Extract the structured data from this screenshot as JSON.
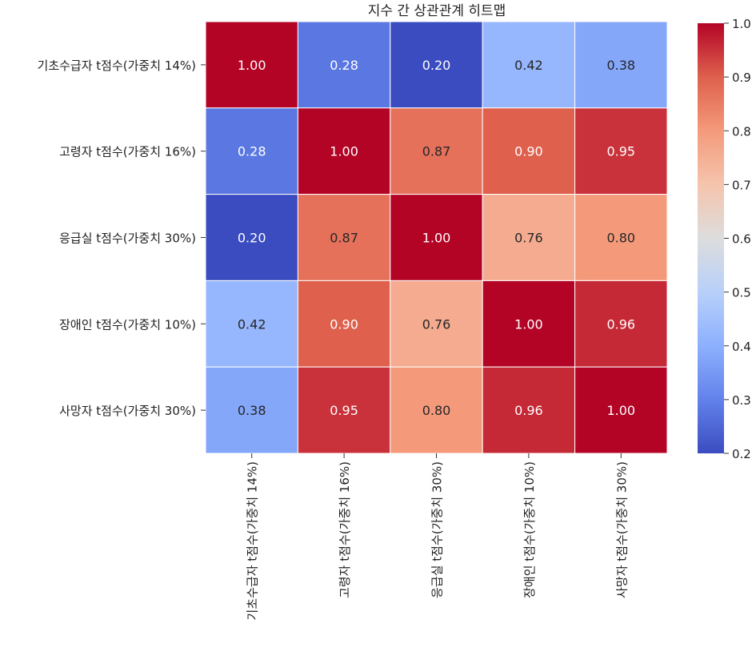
{
  "chart_data": {
    "type": "heatmap",
    "title": "지수 간 상관관계 히트맵",
    "xlabel": "",
    "ylabel": "",
    "x_labels": [
      "기초수급자 t점수(가중치 14%)",
      "고령자 t점수(가중치 16%)",
      "응급실 t점수(가중치 30%)",
      "장애인 t점수(가중치 10%)",
      "사망자 t점수(가중치 30%)"
    ],
    "y_labels": [
      "기초수급자 t점수(가중치 14%)",
      "고령자 t점수(가중치 16%)",
      "응급실 t점수(가중치 30%)",
      "장애인 t점수(가중치 10%)",
      "사망자 t점수(가중치 30%)"
    ],
    "values": [
      [
        1.0,
        0.28,
        0.2,
        0.42,
        0.38
      ],
      [
        0.28,
        1.0,
        0.87,
        0.9,
        0.95
      ],
      [
        0.2,
        0.87,
        1.0,
        0.76,
        0.8
      ],
      [
        0.42,
        0.9,
        0.76,
        1.0,
        0.96
      ],
      [
        0.38,
        0.95,
        0.8,
        0.96,
        1.0
      ]
    ],
    "value_format": "0.00",
    "colormap": "coolwarm",
    "vmin": 0.2,
    "vmax": 1.0,
    "colorbar_ticks": [
      0.2,
      0.3,
      0.4,
      0.5,
      0.6,
      0.7,
      0.8,
      0.9,
      1.0
    ],
    "colorbar_tick_labels": [
      "0.2",
      "0.3",
      "0.4",
      "0.5",
      "0.6",
      "0.7",
      "0.8",
      "0.9",
      "1.0"
    ],
    "grid": "white cell borders",
    "legend": "colorbar right"
  }
}
